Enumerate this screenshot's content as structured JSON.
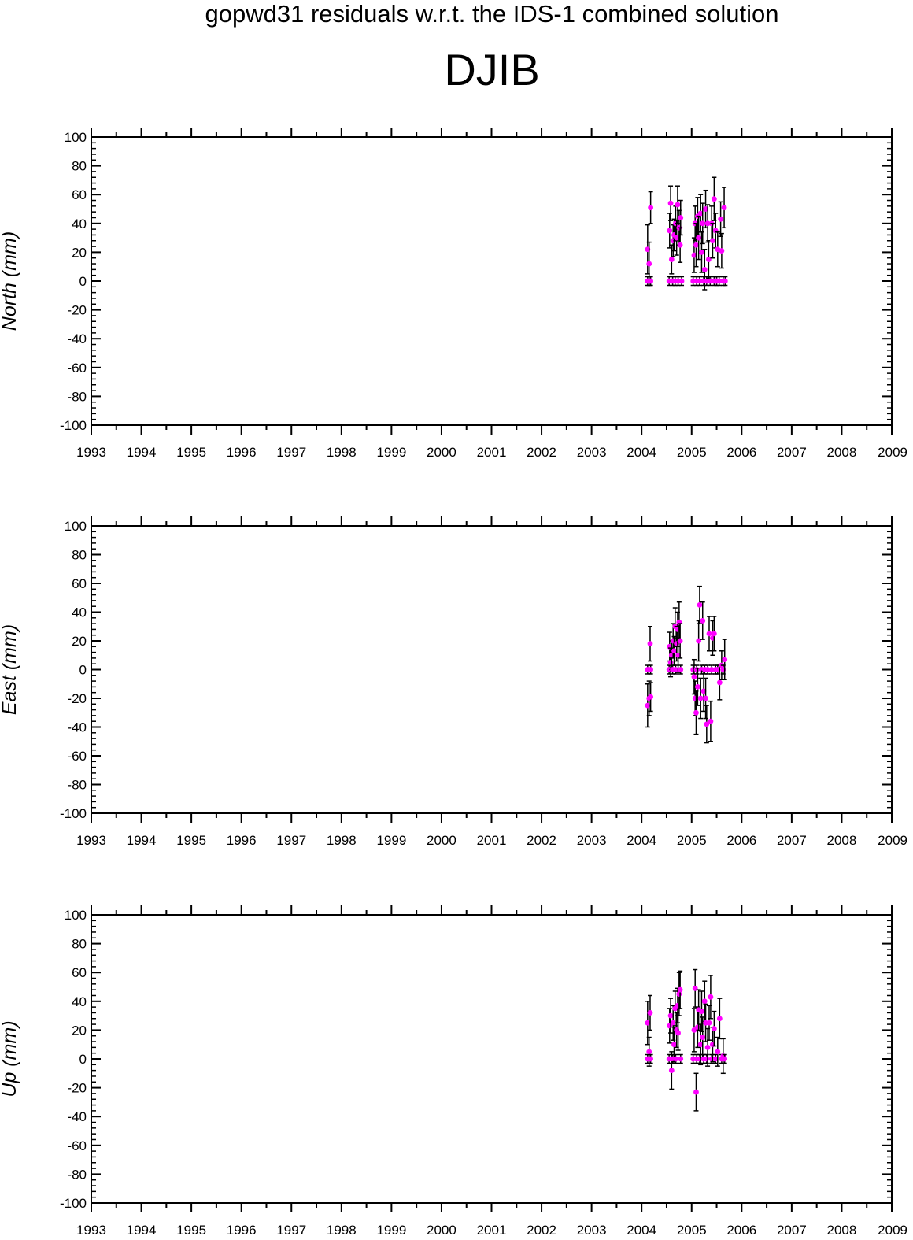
{
  "page": {
    "suptitle": "gopwd31 residuals w.r.t. the IDS-1 combined solution",
    "title": "DJIB"
  },
  "colors": {
    "marker": "#ff00ff",
    "errorbar": "#000000",
    "axis": "#000000",
    "background": "#ffffff"
  },
  "chart_data": [
    {
      "type": "scatter",
      "ylabel": "North (mm)",
      "xlim": [
        1993,
        2009
      ],
      "ylim": [
        -100,
        100
      ],
      "grid": false,
      "xticks": [
        1993,
        1994,
        1995,
        1996,
        1997,
        1998,
        1999,
        2000,
        2001,
        2002,
        2003,
        2004,
        2005,
        2006,
        2007,
        2008,
        2009
      ],
      "yticks": [
        -100,
        -80,
        -60,
        -40,
        -20,
        0,
        20,
        40,
        60,
        80,
        100
      ],
      "series": [
        {
          "points": [
            {
              "x": 2004.12,
              "y": 0,
              "err": 3
            },
            {
              "x": 2004.12,
              "y": 22,
              "err": 17
            },
            {
              "x": 2004.15,
              "y": 12,
              "err": 15
            },
            {
              "x": 2004.18,
              "y": 0,
              "err": 3
            },
            {
              "x": 2004.18,
              "y": 51,
              "err": 11
            },
            {
              "x": 2004.55,
              "y": 0,
              "err": 3
            },
            {
              "x": 2004.56,
              "y": 35,
              "err": 12
            },
            {
              "x": 2004.58,
              "y": 54,
              "err": 12
            },
            {
              "x": 2004.6,
              "y": 15,
              "err": 10
            },
            {
              "x": 2004.62,
              "y": 0,
              "err": 3
            },
            {
              "x": 2004.63,
              "y": 28,
              "err": 11
            },
            {
              "x": 2004.65,
              "y": 32,
              "err": 11
            },
            {
              "x": 2004.67,
              "y": 0,
              "err": 3
            },
            {
              "x": 2004.68,
              "y": 40,
              "err": 12
            },
            {
              "x": 2004.7,
              "y": 30,
              "err": 12
            },
            {
              "x": 2004.72,
              "y": 53,
              "err": 13
            },
            {
              "x": 2004.73,
              "y": 0,
              "err": 3
            },
            {
              "x": 2004.75,
              "y": 37,
              "err": 12
            },
            {
              "x": 2004.77,
              "y": 25,
              "err": 12
            },
            {
              "x": 2004.78,
              "y": 44,
              "err": 12
            },
            {
              "x": 2004.8,
              "y": 0,
              "err": 3
            },
            {
              "x": 2005.03,
              "y": 0,
              "err": 3
            },
            {
              "x": 2005.05,
              "y": 18,
              "err": 12
            },
            {
              "x": 2005.07,
              "y": 40,
              "err": 12
            },
            {
              "x": 2005.09,
              "y": 25,
              "err": 15
            },
            {
              "x": 2005.1,
              "y": 0,
              "err": 3
            },
            {
              "x": 2005.12,
              "y": 45,
              "err": 13
            },
            {
              "x": 2005.14,
              "y": 30,
              "err": 15
            },
            {
              "x": 2005.16,
              "y": 0,
              "err": 3
            },
            {
              "x": 2005.18,
              "y": 47,
              "err": 13
            },
            {
              "x": 2005.2,
              "y": 20,
              "err": 14
            },
            {
              "x": 2005.22,
              "y": 40,
              "err": 14
            },
            {
              "x": 2005.24,
              "y": 0,
              "err": 3
            },
            {
              "x": 2005.26,
              "y": 8,
              "err": 14
            },
            {
              "x": 2005.28,
              "y": 50,
              "err": 13
            },
            {
              "x": 2005.3,
              "y": 0,
              "err": 3
            },
            {
              "x": 2005.32,
              "y": 40,
              "err": 13
            },
            {
              "x": 2005.34,
              "y": 15,
              "err": 13
            },
            {
              "x": 2005.37,
              "y": 0,
              "err": 3
            },
            {
              "x": 2005.4,
              "y": 40,
              "err": 12
            },
            {
              "x": 2005.42,
              "y": 28,
              "err": 12
            },
            {
              "x": 2005.45,
              "y": 0,
              "err": 3
            },
            {
              "x": 2005.45,
              "y": 57,
              "err": 15
            },
            {
              "x": 2005.48,
              "y": 35,
              "err": 12
            },
            {
              "x": 2005.5,
              "y": 0,
              "err": 3
            },
            {
              "x": 2005.52,
              "y": 22,
              "err": 12
            },
            {
              "x": 2005.55,
              "y": 0,
              "err": 3
            },
            {
              "x": 2005.58,
              "y": 43,
              "err": 12
            },
            {
              "x": 2005.6,
              "y": 21,
              "err": 12
            },
            {
              "x": 2005.63,
              "y": 0,
              "err": 3
            },
            {
              "x": 2005.65,
              "y": 51,
              "err": 14
            },
            {
              "x": 2005.67,
              "y": 0,
              "err": 3
            }
          ]
        }
      ]
    },
    {
      "type": "scatter",
      "ylabel": "East (mm)",
      "xlim": [
        1993,
        2009
      ],
      "ylim": [
        -100,
        100
      ],
      "grid": false,
      "xticks": [
        1993,
        1994,
        1995,
        1996,
        1997,
        1998,
        1999,
        2000,
        2001,
        2002,
        2003,
        2004,
        2005,
        2006,
        2007,
        2008,
        2009
      ],
      "yticks": [
        -100,
        -80,
        -60,
        -40,
        -20,
        0,
        20,
        40,
        60,
        80,
        100
      ],
      "series": [
        {
          "points": [
            {
              "x": 2004.12,
              "y": -25,
              "err": 15
            },
            {
              "x": 2004.12,
              "y": 0,
              "err": 3
            },
            {
              "x": 2004.15,
              "y": -20,
              "err": 12
            },
            {
              "x": 2004.17,
              "y": 18,
              "err": 12
            },
            {
              "x": 2004.18,
              "y": 0,
              "err": 3
            },
            {
              "x": 2004.18,
              "y": -19,
              "err": 10
            },
            {
              "x": 2004.55,
              "y": 0,
              "err": 3
            },
            {
              "x": 2004.56,
              "y": 16,
              "err": 10
            },
            {
              "x": 2004.58,
              "y": 5,
              "err": 10
            },
            {
              "x": 2004.6,
              "y": 10,
              "err": 10
            },
            {
              "x": 2004.62,
              "y": 0,
              "err": 3
            },
            {
              "x": 2004.63,
              "y": 20,
              "err": 12
            },
            {
              "x": 2004.65,
              "y": 13,
              "err": 10
            },
            {
              "x": 2004.67,
              "y": 30,
              "err": 13
            },
            {
              "x": 2004.68,
              "y": 0,
              "err": 3
            },
            {
              "x": 2004.7,
              "y": 18,
              "err": 12
            },
            {
              "x": 2004.72,
              "y": 28,
              "err": 12
            },
            {
              "x": 2004.73,
              "y": 10,
              "err": 12
            },
            {
              "x": 2004.75,
              "y": 33,
              "err": 14
            },
            {
              "x": 2004.77,
              "y": 20,
              "err": 12
            },
            {
              "x": 2004.78,
              "y": 0,
              "err": 3
            },
            {
              "x": 2005.03,
              "y": 0,
              "err": 3
            },
            {
              "x": 2005.05,
              "y": -5,
              "err": 12
            },
            {
              "x": 2005.07,
              "y": -20,
              "err": 12
            },
            {
              "x": 2005.09,
              "y": -30,
              "err": 15
            },
            {
              "x": 2005.1,
              "y": 0,
              "err": 3
            },
            {
              "x": 2005.12,
              "y": -12,
              "err": 13
            },
            {
              "x": 2005.14,
              "y": 20,
              "err": 14
            },
            {
              "x": 2005.16,
              "y": 45,
              "err": 13
            },
            {
              "x": 2005.18,
              "y": -20,
              "err": 14
            },
            {
              "x": 2005.2,
              "y": 0,
              "err": 3
            },
            {
              "x": 2005.22,
              "y": 34,
              "err": 13
            },
            {
              "x": 2005.24,
              "y": -15,
              "err": 14
            },
            {
              "x": 2005.26,
              "y": 0,
              "err": 3
            },
            {
              "x": 2005.28,
              "y": -20,
              "err": 14
            },
            {
              "x": 2005.3,
              "y": -38,
              "err": 13
            },
            {
              "x": 2005.32,
              "y": 0,
              "err": 3
            },
            {
              "x": 2005.35,
              "y": 25,
              "err": 12
            },
            {
              "x": 2005.38,
              "y": -36,
              "err": 14
            },
            {
              "x": 2005.4,
              "y": 0,
              "err": 3
            },
            {
              "x": 2005.42,
              "y": 22,
              "err": 12
            },
            {
              "x": 2005.45,
              "y": 25,
              "err": 12
            },
            {
              "x": 2005.48,
              "y": 0,
              "err": 3
            },
            {
              "x": 2005.52,
              "y": 0,
              "err": 3
            },
            {
              "x": 2005.56,
              "y": -9,
              "err": 12
            },
            {
              "x": 2005.6,
              "y": 3,
              "err": 10
            },
            {
              "x": 2005.63,
              "y": 0,
              "err": 3
            },
            {
              "x": 2005.66,
              "y": 7,
              "err": 14
            }
          ]
        }
      ]
    },
    {
      "type": "scatter",
      "ylabel": "Up (mm)",
      "xlim": [
        1993,
        2009
      ],
      "ylim": [
        -100,
        100
      ],
      "grid": false,
      "xticks": [
        1993,
        1994,
        1995,
        1996,
        1997,
        1998,
        1999,
        2000,
        2001,
        2002,
        2003,
        2004,
        2005,
        2006,
        2007,
        2008,
        2009
      ],
      "yticks": [
        -100,
        -80,
        -60,
        -40,
        -20,
        0,
        20,
        40,
        60,
        80,
        100
      ],
      "series": [
        {
          "points": [
            {
              "x": 2004.12,
              "y": 0,
              "err": 3
            },
            {
              "x": 2004.12,
              "y": 25,
              "err": 15
            },
            {
              "x": 2004.15,
              "y": 5,
              "err": 10
            },
            {
              "x": 2004.17,
              "y": 32,
              "err": 12
            },
            {
              "x": 2004.18,
              "y": 0,
              "err": 3
            },
            {
              "x": 2004.55,
              "y": 0,
              "err": 3
            },
            {
              "x": 2004.56,
              "y": 23,
              "err": 12
            },
            {
              "x": 2004.58,
              "y": 30,
              "err": 12
            },
            {
              "x": 2004.6,
              "y": -8,
              "err": 13
            },
            {
              "x": 2004.62,
              "y": 0,
              "err": 3
            },
            {
              "x": 2004.63,
              "y": 25,
              "err": 12
            },
            {
              "x": 2004.65,
              "y": 10,
              "err": 12
            },
            {
              "x": 2004.67,
              "y": 35,
              "err": 12
            },
            {
              "x": 2004.68,
              "y": 0,
              "err": 3
            },
            {
              "x": 2004.7,
              "y": 20,
              "err": 12
            },
            {
              "x": 2004.72,
              "y": 37,
              "err": 12
            },
            {
              "x": 2004.73,
              "y": 18,
              "err": 12
            },
            {
              "x": 2004.75,
              "y": 45,
              "err": 15
            },
            {
              "x": 2004.77,
              "y": 48,
              "err": 13
            },
            {
              "x": 2004.78,
              "y": 0,
              "err": 3
            },
            {
              "x": 2005.03,
              "y": 0,
              "err": 3
            },
            {
              "x": 2005.05,
              "y": 20,
              "err": 15
            },
            {
              "x": 2005.07,
              "y": 49,
              "err": 13
            },
            {
              "x": 2005.09,
              "y": -23,
              "err": 13
            },
            {
              "x": 2005.1,
              "y": 0,
              "err": 3
            },
            {
              "x": 2005.12,
              "y": 22,
              "err": 14
            },
            {
              "x": 2005.14,
              "y": 34,
              "err": 14
            },
            {
              "x": 2005.16,
              "y": 0,
              "err": 3
            },
            {
              "x": 2005.18,
              "y": 10,
              "err": 14
            },
            {
              "x": 2005.2,
              "y": 33,
              "err": 14
            },
            {
              "x": 2005.22,
              "y": 15,
              "err": 14
            },
            {
              "x": 2005.24,
              "y": 0,
              "err": 3
            },
            {
              "x": 2005.26,
              "y": 40,
              "err": 14
            },
            {
              "x": 2005.28,
              "y": 25,
              "err": 13
            },
            {
              "x": 2005.3,
              "y": 0,
              "err": 3
            },
            {
              "x": 2005.32,
              "y": 8,
              "err": 13
            },
            {
              "x": 2005.35,
              "y": 25,
              "err": 12
            },
            {
              "x": 2005.38,
              "y": 43,
              "err": 15
            },
            {
              "x": 2005.4,
              "y": 0,
              "err": 3
            },
            {
              "x": 2005.42,
              "y": 10,
              "err": 12
            },
            {
              "x": 2005.45,
              "y": 21,
              "err": 12
            },
            {
              "x": 2005.48,
              "y": 0,
              "err": 3
            },
            {
              "x": 2005.52,
              "y": 5,
              "err": 10
            },
            {
              "x": 2005.56,
              "y": 28,
              "err": 14
            },
            {
              "x": 2005.6,
              "y": 0,
              "err": 3
            },
            {
              "x": 2005.63,
              "y": 2,
              "err": 12
            },
            {
              "x": 2005.66,
              "y": 0,
              "err": 3
            }
          ]
        }
      ]
    }
  ]
}
